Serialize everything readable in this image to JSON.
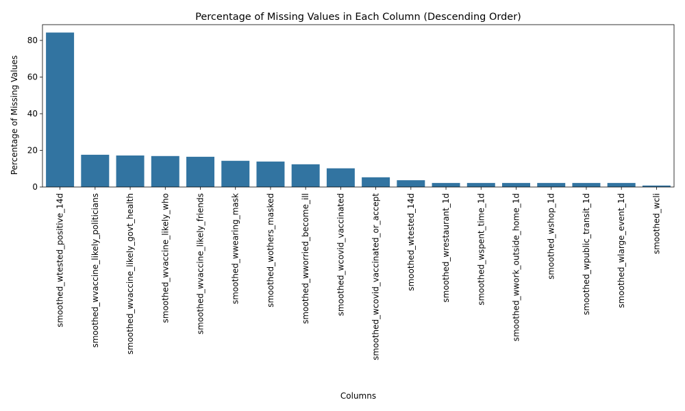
{
  "chart_data": {
    "type": "bar",
    "title": "Percentage of Missing Values in Each Column (Descending Order)",
    "xlabel": "Columns",
    "ylabel": "Percentage of Missing Values",
    "ylim": [
      0,
      88.6
    ],
    "yticks": [
      0,
      20,
      40,
      60,
      80
    ],
    "grid": false,
    "bar_color": "#3274a1",
    "categories": [
      "smoothed_wtested_positive_14d",
      "smoothed_wvaccine_likely_politicians",
      "smoothed_wvaccine_likely_govt_health",
      "smoothed_wvaccine_likely_who",
      "smoothed_wvaccine_likely_friends",
      "smoothed_wwearing_mask",
      "smoothed_wothers_masked",
      "smoothed_wworried_become_ill",
      "smoothed_wcovid_vaccinated",
      "smoothed_wcovid_vaccinated_or_accept",
      "smoothed_wtested_14d",
      "smoothed_wrestaurant_1d",
      "smoothed_wspent_time_1d",
      "smoothed_wwork_outside_home_1d",
      "smoothed_wshop_1d",
      "smoothed_wpublic_transit_1d",
      "smoothed_wlarge_event_1d",
      "smoothed_wcli"
    ],
    "values": [
      84.3,
      17.6,
      17.2,
      16.9,
      16.5,
      14.3,
      13.9,
      12.4,
      10.2,
      5.3,
      3.7,
      2.2,
      2.2,
      2.2,
      2.2,
      2.2,
      2.2,
      0.8
    ]
  }
}
